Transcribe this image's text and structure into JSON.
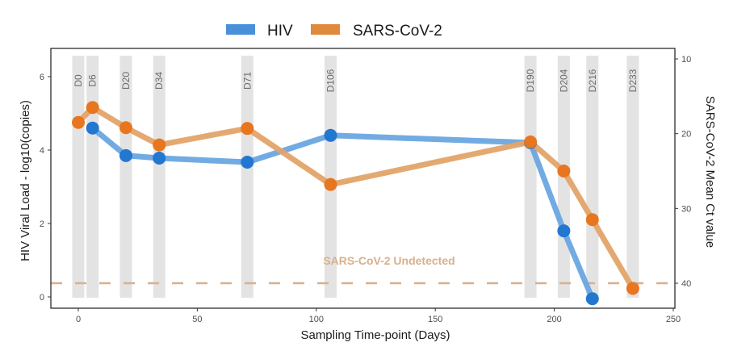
{
  "chart_data": {
    "type": "line",
    "title": "",
    "legend": {
      "position": "top",
      "entries": [
        {
          "name": "HIV",
          "color": "#4a90d9"
        },
        {
          "name": "SARS-CoV-2",
          "color": "#e08a3c"
        }
      ]
    },
    "xlabel": "Sampling Time-point (Days)",
    "ylabel_left": "HIV Viral Load - log10(copies)",
    "ylabel_right": "SARS-CoV-2 Mean Ct value",
    "xlim": [
      -3,
      250
    ],
    "x_ticks": [
      0,
      50,
      100,
      150,
      200,
      250
    ],
    "ylim_left": [
      -0.2,
      6.6
    ],
    "y_ticks_left": [
      0,
      2,
      4,
      6
    ],
    "ylim_right_reversed": [
      8.5,
      42.3
    ],
    "y_ticks_right": [
      10,
      20,
      30,
      40
    ],
    "grid": false,
    "timepoints": [
      {
        "day": 0,
        "label": "D0"
      },
      {
        "day": 6,
        "label": "D6"
      },
      {
        "day": 20,
        "label": "D20"
      },
      {
        "day": 34,
        "label": "D34"
      },
      {
        "day": 71,
        "label": "D71"
      },
      {
        "day": 106,
        "label": "D106"
      },
      {
        "day": 190,
        "label": "D190"
      },
      {
        "day": 204,
        "label": "D204"
      },
      {
        "day": 216,
        "label": "D216"
      },
      {
        "day": 233,
        "label": "D233"
      }
    ],
    "series": [
      {
        "name": "HIV",
        "axis": "left",
        "unit": "log10(copies)",
        "x": [
          6,
          20,
          34,
          71,
          106,
          190,
          204,
          216
        ],
        "y": [
          4.6,
          3.85,
          3.78,
          3.67,
          4.4,
          4.2,
          1.8,
          -0.05
        ]
      },
      {
        "name": "SARS-CoV-2",
        "axis": "right",
        "unit": "Ct",
        "x": [
          0,
          6,
          20,
          34,
          71,
          106,
          190,
          204,
          216,
          233
        ],
        "y": [
          18.5,
          16.5,
          19.2,
          21.5,
          19.3,
          26.8,
          21.1,
          25.0,
          31.5,
          40.7
        ]
      }
    ],
    "annotations": [
      {
        "text": "SARS-CoV-2 Undetected",
        "type": "hline",
        "axis": "right",
        "value": 40,
        "color": "#d9b08c"
      }
    ]
  }
}
